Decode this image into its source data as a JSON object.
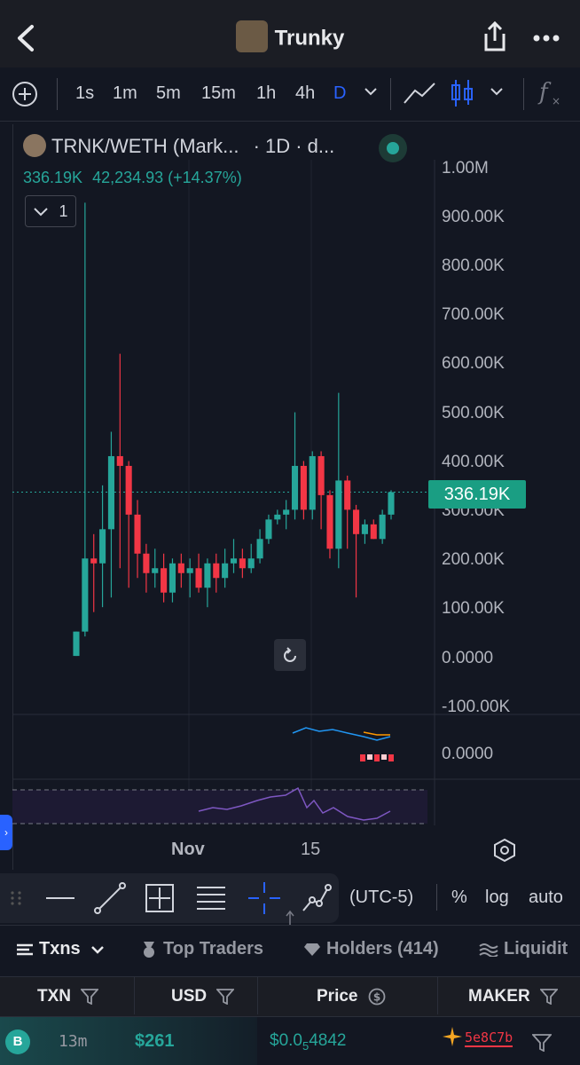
{
  "header": {
    "title": "Trunky"
  },
  "toolbar": {
    "timeframes": [
      "1s",
      "1m",
      "5m",
      "15m",
      "1h",
      "4h",
      "D"
    ],
    "active_timeframe": "D"
  },
  "chart": {
    "symbol": "TRNK/WETH (Mark...",
    "interval": "· 1D · d...",
    "last_value": "336.19K",
    "change": "42,234.93 (+14.37%)",
    "collapse_count": "1",
    "price_tag": "336.19K",
    "x_labels": [
      "Nov",
      "15"
    ],
    "macd_zero": "0.0000"
  },
  "chart_data": {
    "type": "candlestick",
    "title": "TRNK/WETH",
    "y_tick_labels": [
      "1.00M",
      "900.00K",
      "800.00K",
      "700.00K",
      "600.00K",
      "500.00K",
      "400.00K",
      "300.00K",
      "200.00K",
      "100.00K",
      "0.0000",
      "-100.00K"
    ],
    "ylim": [
      -100000,
      1000000
    ],
    "x_tick_labels": [
      "Nov",
      "15"
    ],
    "candles": [
      {
        "o": 0,
        "h": 50000,
        "l": 0,
        "c": 50000
      },
      {
        "o": 50000,
        "h": 930000,
        "l": 40000,
        "c": 200000
      },
      {
        "o": 200000,
        "h": 250000,
        "l": 90000,
        "c": 190000
      },
      {
        "o": 190000,
        "h": 350000,
        "l": 100000,
        "c": 260000
      },
      {
        "o": 260000,
        "h": 460000,
        "l": 120000,
        "c": 410000
      },
      {
        "o": 410000,
        "h": 620000,
        "l": 180000,
        "c": 390000
      },
      {
        "o": 390000,
        "h": 400000,
        "l": 140000,
        "c": 290000
      },
      {
        "o": 290000,
        "h": 320000,
        "l": 160000,
        "c": 210000
      },
      {
        "o": 210000,
        "h": 230000,
        "l": 130000,
        "c": 170000
      },
      {
        "o": 170000,
        "h": 220000,
        "l": 140000,
        "c": 180000
      },
      {
        "o": 180000,
        "h": 210000,
        "l": 110000,
        "c": 130000
      },
      {
        "o": 130000,
        "h": 200000,
        "l": 110000,
        "c": 190000
      },
      {
        "o": 190000,
        "h": 210000,
        "l": 140000,
        "c": 170000
      },
      {
        "o": 170000,
        "h": 200000,
        "l": 120000,
        "c": 180000
      },
      {
        "o": 180000,
        "h": 210000,
        "l": 130000,
        "c": 140000
      },
      {
        "o": 140000,
        "h": 200000,
        "l": 100000,
        "c": 190000
      },
      {
        "o": 190000,
        "h": 210000,
        "l": 130000,
        "c": 160000
      },
      {
        "o": 160000,
        "h": 220000,
        "l": 140000,
        "c": 190000
      },
      {
        "o": 190000,
        "h": 240000,
        "l": 170000,
        "c": 200000
      },
      {
        "o": 200000,
        "h": 220000,
        "l": 160000,
        "c": 180000
      },
      {
        "o": 180000,
        "h": 230000,
        "l": 170000,
        "c": 200000
      },
      {
        "o": 200000,
        "h": 260000,
        "l": 190000,
        "c": 240000
      },
      {
        "o": 240000,
        "h": 290000,
        "l": 230000,
        "c": 280000
      },
      {
        "o": 280000,
        "h": 300000,
        "l": 270000,
        "c": 290000
      },
      {
        "o": 290000,
        "h": 320000,
        "l": 260000,
        "c": 300000
      },
      {
        "o": 300000,
        "h": 500000,
        "l": 280000,
        "c": 390000
      },
      {
        "o": 390000,
        "h": 400000,
        "l": 280000,
        "c": 300000
      },
      {
        "o": 300000,
        "h": 420000,
        "l": 280000,
        "c": 410000
      },
      {
        "o": 410000,
        "h": 420000,
        "l": 260000,
        "c": 330000
      },
      {
        "o": 330000,
        "h": 340000,
        "l": 200000,
        "c": 220000
      },
      {
        "o": 220000,
        "h": 540000,
        "l": 180000,
        "c": 360000
      },
      {
        "o": 360000,
        "h": 370000,
        "l": 220000,
        "c": 300000
      },
      {
        "o": 300000,
        "h": 310000,
        "l": 120000,
        "c": 250000
      },
      {
        "o": 250000,
        "h": 280000,
        "l": 230000,
        "c": 270000
      },
      {
        "o": 270000,
        "h": 280000,
        "l": 240000,
        "c": 240000
      },
      {
        "o": 240000,
        "h": 300000,
        "l": 230000,
        "c": 290000
      },
      {
        "o": 290000,
        "h": 340000,
        "l": 280000,
        "c": 336190
      }
    ],
    "last_price": 336190,
    "change_abs": 42234.93,
    "change_pct": 14.37
  },
  "bottom_toolbar": {
    "timezone": "(UTC-5)",
    "percent": "%",
    "log": "log",
    "auto": "auto"
  },
  "tabs": [
    {
      "label": "Txns"
    },
    {
      "label": "Top Traders"
    },
    {
      "label": "Holders (414)"
    },
    {
      "label": "Liquidit"
    }
  ],
  "table": {
    "headers": [
      "TXN",
      "USD",
      "Price",
      "MAKER"
    ],
    "rows": [
      {
        "type": "B",
        "age": "13m",
        "usd": "$261",
        "price_prefix": "$0.0",
        "price_sub": "5",
        "price_rest": "4842",
        "maker": "5e8C7b"
      }
    ]
  },
  "colors": {
    "up": "#26a69a",
    "down": "#f23645",
    "accent": "#2962ff"
  }
}
